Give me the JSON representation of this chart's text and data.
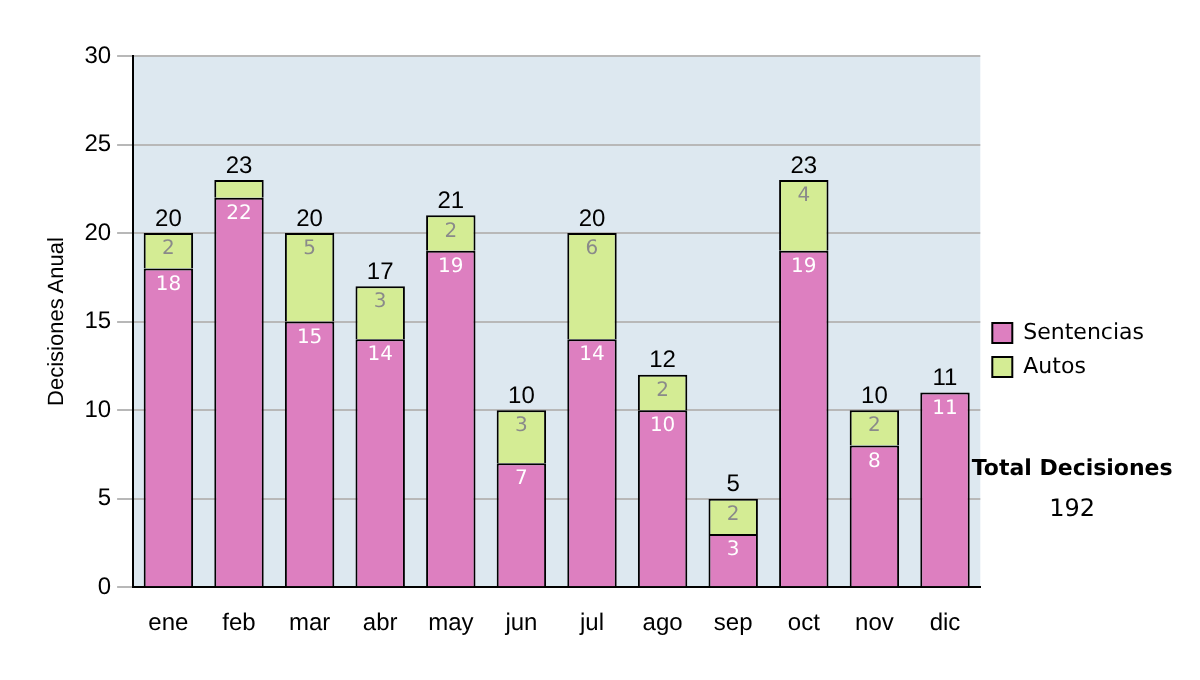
{
  "chart_data": {
    "type": "bar",
    "stacked": true,
    "ylabel": "Decisiones Anual",
    "categories": [
      "ene",
      "feb",
      "mar",
      "abr",
      "may",
      "jun",
      "jul",
      "ago",
      "sep",
      "oct",
      "nov",
      "dic"
    ],
    "series": [
      {
        "name": "Sentencias",
        "color": "#dd7fc0",
        "values": [
          18,
          22,
          15,
          14,
          19,
          7,
          14,
          10,
          3,
          19,
          8,
          11
        ],
        "value_labels": [
          "18",
          "22",
          "15",
          "14",
          "19",
          "7",
          "14",
          "10",
          "3",
          "19",
          "8",
          "11"
        ]
      },
      {
        "name": "Autos",
        "color": "#d4ec94",
        "values": [
          2,
          1,
          5,
          3,
          2,
          3,
          6,
          2,
          2,
          4,
          2,
          0
        ],
        "value_labels": [
          "2",
          null,
          "5",
          "3",
          "2",
          "3",
          "6",
          "2",
          "2",
          "4",
          "2",
          null
        ]
      }
    ],
    "totals": [
      "20",
      "23",
      "20",
      "17",
      "21",
      "10",
      "20",
      "12",
      "5",
      "23",
      "10",
      "11"
    ],
    "ylim": [
      0,
      30
    ],
    "yticks": [
      0,
      5,
      10,
      15,
      20,
      25,
      30
    ],
    "grid": "y",
    "legend": "right",
    "annotations": [
      "Total Decisiones",
      "192"
    ]
  }
}
